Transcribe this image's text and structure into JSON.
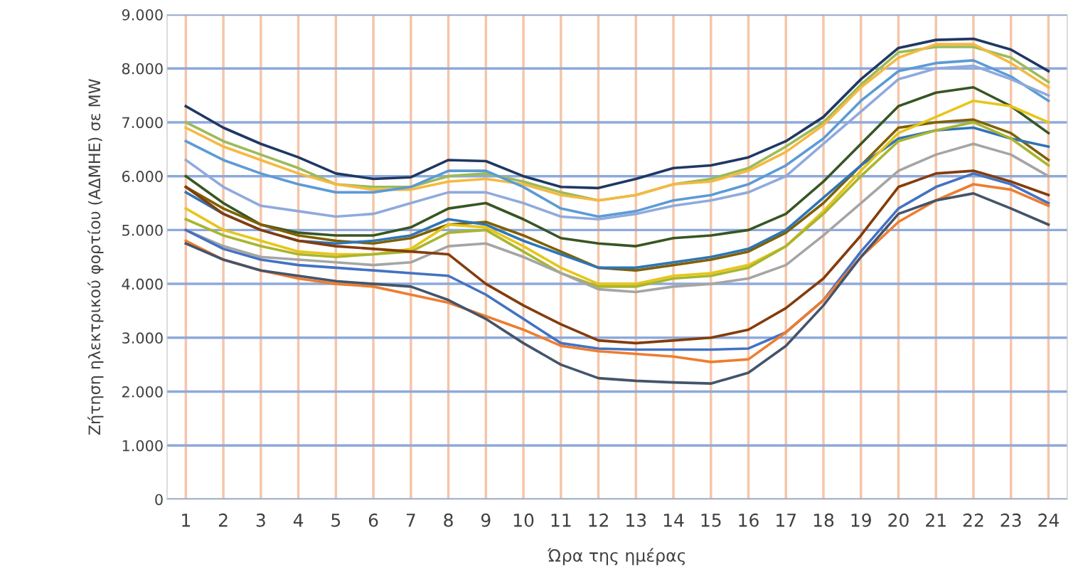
{
  "chart_data": {
    "type": "line",
    "xlabel": "Ώρα της ημέρας",
    "ylabel": "Ζήτηση ηλεκτρικού φορτίου (ΑΔΜΗΕ) σε MW",
    "categories": [
      "1",
      "2",
      "3",
      "4",
      "5",
      "6",
      "7",
      "8",
      "9",
      "10",
      "11",
      "12",
      "13",
      "14",
      "15",
      "16",
      "17",
      "18",
      "19",
      "20",
      "21",
      "22",
      "23",
      "24"
    ],
    "ylim": [
      0,
      9000
    ],
    "yticks": [
      0,
      {
        "value": 1000,
        "label": "1.000"
      },
      {
        "value": 2000,
        "label": "2.000"
      },
      {
        "value": 3000,
        "label": "3.000"
      },
      {
        "value": 4000,
        "label": "4.000"
      },
      {
        "value": 5000,
        "label": "5.000"
      },
      {
        "value": 6000,
        "label": "6.000"
      },
      {
        "value": 7000,
        "label": "7.000"
      },
      {
        "value": 8000,
        "label": "8.000"
      },
      {
        "value": 9000,
        "label": "9.000"
      }
    ],
    "grid": true,
    "marker": "none",
    "line_style": "solid",
    "series": [
      {
        "color": "#1f3864",
        "values": [
          7300,
          6900,
          6600,
          6350,
          6050,
          5950,
          5980,
          6300,
          6280,
          6000,
          5800,
          5780,
          5950,
          6150,
          6200,
          6350,
          6650,
          7100,
          7800,
          8380,
          8530,
          8550,
          8350,
          7950
        ]
      },
      {
        "color": "#9bbb59",
        "values": [
          7000,
          6650,
          6400,
          6150,
          5850,
          5800,
          5800,
          6000,
          6050,
          5900,
          5700,
          5550,
          5650,
          5850,
          5950,
          6150,
          6550,
          7000,
          7700,
          8300,
          8400,
          8400,
          8200,
          7750
        ]
      },
      {
        "color": "#f5b942",
        "values": [
          6900,
          6550,
          6300,
          6050,
          5850,
          5750,
          5750,
          5900,
          5950,
          5850,
          5650,
          5550,
          5650,
          5850,
          5900,
          6100,
          6450,
          6950,
          7650,
          8200,
          8450,
          8450,
          8100,
          7650
        ]
      },
      {
        "color": "#5b9bd5",
        "values": [
          6650,
          6300,
          6050,
          5850,
          5700,
          5700,
          5800,
          6100,
          6100,
          5800,
          5400,
          5250,
          5350,
          5550,
          5650,
          5850,
          6200,
          6700,
          7400,
          7950,
          8100,
          8150,
          7850,
          7400
        ]
      },
      {
        "color": "#8faadc",
        "values": [
          6300,
          5800,
          5450,
          5350,
          5250,
          5300,
          5500,
          5700,
          5700,
          5500,
          5250,
          5200,
          5300,
          5450,
          5550,
          5700,
          6000,
          6600,
          7200,
          7800,
          8000,
          8050,
          7800,
          7500
        ]
      },
      {
        "color": "#375623",
        "values": [
          6000,
          5500,
          5100,
          4950,
          4900,
          4900,
          5050,
          5400,
          5500,
          5200,
          4850,
          4750,
          4700,
          4850,
          4900,
          5000,
          5300,
          5900,
          6600,
          7300,
          7550,
          7650,
          7300,
          6800
        ]
      },
      {
        "color": "#7f6000",
        "values": [
          5800,
          5400,
          5100,
          4900,
          4800,
          4750,
          4850,
          5100,
          5150,
          4900,
          4600,
          4300,
          4250,
          4350,
          4450,
          4600,
          4950,
          5500,
          6200,
          6900,
          7000,
          7050,
          6800,
          6300
        ]
      },
      {
        "color": "#2e75b6",
        "values": [
          5700,
          5300,
          5000,
          4800,
          4750,
          4800,
          4900,
          5200,
          5100,
          4800,
          4550,
          4300,
          4300,
          4400,
          4500,
          4650,
          5000,
          5600,
          6200,
          6700,
          6850,
          6900,
          6700,
          6550
        ]
      },
      {
        "color": "#e6c619",
        "values": [
          5400,
          5000,
          4800,
          4600,
          4550,
          4550,
          4650,
          5100,
          5050,
          4700,
          4300,
          4000,
          4000,
          4150,
          4200,
          4350,
          4700,
          5350,
          6100,
          6800,
          7100,
          7400,
          7300,
          7000
        ]
      },
      {
        "color": "#a9b530",
        "values": [
          5200,
          4900,
          4700,
          4550,
          4500,
          4550,
          4600,
          4950,
          5000,
          4600,
          4200,
          3950,
          3950,
          4100,
          4150,
          4300,
          4700,
          5300,
          6000,
          6650,
          6850,
          7000,
          6700,
          6200
        ]
      },
      {
        "color": "#a5a5a5",
        "values": [
          5000,
          4700,
          4500,
          4450,
          4400,
          4350,
          4400,
          4700,
          4750,
          4500,
          4200,
          3900,
          3850,
          3950,
          4000,
          4100,
          4350,
          4900,
          5500,
          6100,
          6400,
          6600,
          6400,
          6000
        ]
      },
      {
        "color": "#843c0c",
        "values": [
          5800,
          5300,
          5000,
          4800,
          4700,
          4650,
          4600,
          4550,
          4000,
          3600,
          3250,
          2950,
          2900,
          2950,
          3000,
          3150,
          3550,
          4100,
          4900,
          5800,
          6050,
          6100,
          5900,
          5650
        ]
      },
      {
        "color": "#4472c4",
        "values": [
          5000,
          4650,
          4450,
          4350,
          4300,
          4250,
          4200,
          4150,
          3800,
          3350,
          2900,
          2800,
          2780,
          2780,
          2780,
          2800,
          3100,
          3700,
          4600,
          5400,
          5800,
          6050,
          5850,
          5500
        ]
      },
      {
        "color": "#ed7d31",
        "values": [
          4800,
          4450,
          4250,
          4100,
          4000,
          3950,
          3800,
          3650,
          3400,
          3150,
          2850,
          2750,
          2700,
          2650,
          2550,
          2600,
          3100,
          3700,
          4500,
          5150,
          5550,
          5850,
          5750,
          5450
        ]
      },
      {
        "color": "#44546a",
        "values": [
          4750,
          4450,
          4250,
          4150,
          4050,
          4000,
          3950,
          3700,
          3350,
          2900,
          2500,
          2250,
          2200,
          2170,
          2150,
          2350,
          2850,
          3600,
          4500,
          5300,
          5550,
          5680,
          5400,
          5100
        ]
      }
    ]
  }
}
